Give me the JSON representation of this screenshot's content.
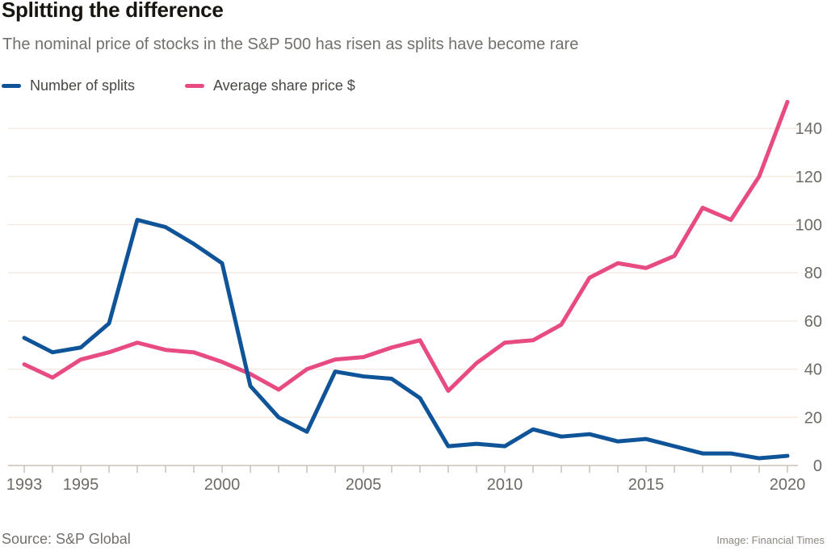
{
  "header": {
    "title": "Splitting the difference",
    "subtitle": "The nominal price of stocks in the S&P 500 has risen as splits have become rare"
  },
  "legend": [
    {
      "label": "Number of splits",
      "color": "#0f5499"
    },
    {
      "label": "Average share price $",
      "color": "#e84a82"
    }
  ],
  "footer": {
    "source": "Source: S&P Global",
    "credit": "Image: Financial Times"
  },
  "chart_data": {
    "type": "line",
    "title": "Splitting the difference",
    "subtitle": "The nominal price of stocks in the S&P 500 has risen as splits have become rare",
    "x": [
      1993,
      1994,
      1995,
      1996,
      1997,
      1998,
      1999,
      2000,
      2001,
      2002,
      2003,
      2004,
      2005,
      2006,
      2007,
      2008,
      2009,
      2010,
      2011,
      2012,
      2013,
      2014,
      2015,
      2016,
      2017,
      2018,
      2019,
      2020
    ],
    "series": [
      {
        "name": "Number of splits",
        "color": "#0f5499",
        "values": [
          53,
          47,
          49,
          59,
          102,
          99,
          92,
          84,
          33,
          20,
          14,
          39,
          37,
          36,
          28,
          8,
          9,
          8,
          15,
          12,
          13,
          10,
          11,
          8,
          5,
          5,
          3,
          4
        ]
      },
      {
        "name": "Average share price $",
        "color": "#e84a82",
        "values": [
          42,
          36.5,
          44,
          47,
          51,
          48,
          47,
          43,
          38,
          31.5,
          40,
          44,
          45,
          49,
          52,
          31,
          42.5,
          51,
          52,
          58.5,
          78,
          84,
          82,
          87,
          107,
          102,
          120,
          151
        ]
      }
    ],
    "y_ticks": [
      0,
      20,
      40,
      60,
      80,
      100,
      120,
      140
    ],
    "x_tick_labels": [
      1993,
      1995,
      2000,
      2005,
      2010,
      2015,
      2020
    ],
    "ylim": [
      0,
      155
    ],
    "xlabel": "",
    "ylabel": "",
    "grid": "horizontal",
    "legend_position": "top-left",
    "colors": {
      "grid": "#f4e8dc",
      "axis": "#c7c1b8",
      "tick_label": "#6e6a64"
    }
  }
}
